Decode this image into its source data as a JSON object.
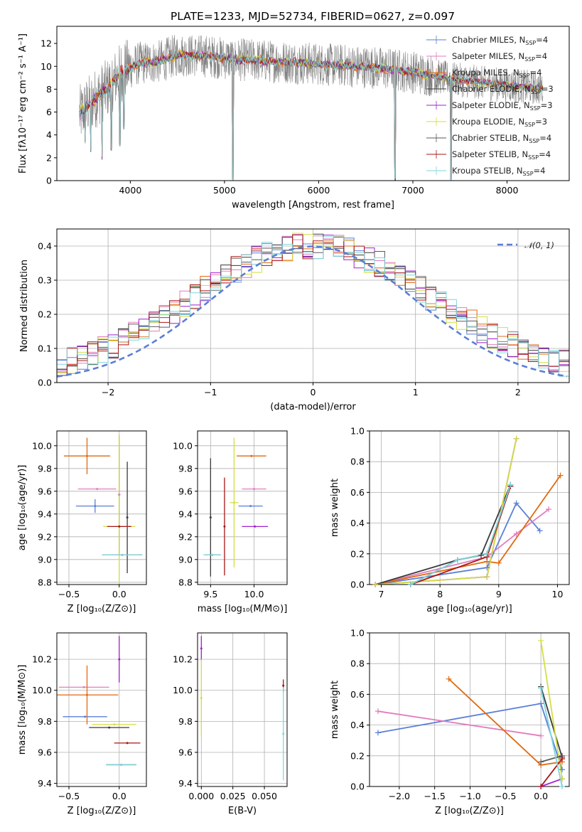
{
  "figure_title": "PLATE=1233, MJD=52734, FIBERID=0627, z=0.097",
  "models": [
    {
      "name": "Chabrier MILES",
      "nssp": "4",
      "color": "#5b7fd6"
    },
    {
      "name": "Salpeter MILES",
      "nssp": "4",
      "color": "#e27cbd"
    },
    {
      "name": "Kroupa MILES",
      "nssp": "4",
      "color": "#e06a10"
    },
    {
      "name": "Chabrier ELODIE",
      "nssp": "3",
      "color": "#3a3a3a"
    },
    {
      "name": "Salpeter ELODIE",
      "nssp": "3",
      "color": "#a21fd0"
    },
    {
      "name": "Kroupa ELODIE",
      "nssp": "3",
      "color": "#d4de42"
    },
    {
      "name": "Chabrier STELIB",
      "nssp": "4",
      "color": "#5a5a5a"
    },
    {
      "name": "Salpeter STELIB",
      "nssp": "4",
      "color": "#a81616"
    },
    {
      "name": "Kroupa STELIB",
      "nssp": "4",
      "color": "#7fd6dc"
    }
  ],
  "chart_data": [
    {
      "id": "spectrum",
      "type": "line",
      "xlabel": "wavelength [Angstrom, rest frame]",
      "ylabel": "Flux [fλ10⁻¹⁷ erg cm⁻² s⁻¹ A⁻¹]",
      "xlim": [
        3220,
        8660
      ],
      "ylim": [
        0,
        13.5
      ],
      "xticks": [
        4000,
        5000,
        6000,
        7000,
        8000
      ],
      "yticks": [
        0,
        2,
        4,
        6,
        8,
        10,
        12
      ],
      "legend_location": "top-right",
      "observed_series": {
        "color": "#808080",
        "x_range": [
          3460,
          8380
        ]
      },
      "continuum_points": [
        [
          3470,
          5.8
        ],
        [
          3600,
          7.0
        ],
        [
          3750,
          8.0
        ],
        [
          3900,
          9.5
        ],
        [
          4100,
          10.3
        ],
        [
          4300,
          10.4
        ],
        [
          4500,
          11.0
        ],
        [
          4800,
          10.9
        ],
        [
          5100,
          10.6
        ],
        [
          5400,
          10.5
        ],
        [
          5800,
          10.3
        ],
        [
          6200,
          10.1
        ],
        [
          6600,
          9.9
        ],
        [
          7000,
          9.5
        ],
        [
          7400,
          8.9
        ],
        [
          7800,
          8.5
        ],
        [
          8200,
          8.2
        ],
        [
          8380,
          8.1
        ]
      ],
      "absorption_features": [
        [
          3520,
          3.2
        ],
        [
          3580,
          2.5
        ],
        [
          3700,
          1.8
        ],
        [
          3800,
          2.6
        ],
        [
          3890,
          3.0
        ],
        [
          3933,
          4.5
        ],
        [
          5090,
          0.0
        ],
        [
          6810,
          0.0
        ],
        [
          7405,
          0.0
        ]
      ]
    },
    {
      "id": "residual-histogram",
      "type": "histogram",
      "xlabel": "(data-model)/error",
      "ylabel": "Normed distribution",
      "xlim": [
        -2.5,
        2.5
      ],
      "ylim": [
        0,
        0.45
      ],
      "xticks": [
        -2,
        -1,
        0,
        1,
        2
      ],
      "yticks": [
        0.0,
        0.1,
        0.2,
        0.3,
        0.4
      ],
      "bin_width": 0.1,
      "reference_curve": {
        "label": "𝒩(0, 1)",
        "mean": 0,
        "sigma": 1,
        "color": "#5b7fd6",
        "style": "dashed"
      },
      "legend_location": "top-right"
    },
    {
      "id": "age-vs-Z",
      "type": "errorbar",
      "xlabel": "Z [log₁₀(Z/Z⊙)]",
      "ylabel": "age  [log₁₀(age/yr)]",
      "xlim": [
        -0.62,
        0.27
      ],
      "ylim": [
        8.78,
        10.13
      ],
      "xticks": [
        -0.5,
        0.0
      ],
      "yticks": [
        8.8,
        9.0,
        9.2,
        9.4,
        9.6,
        9.8,
        10.0
      ],
      "points": [
        {
          "model": 0,
          "x": -0.24,
          "xerr": 0.19,
          "y": 9.47,
          "yerr": 0.06
        },
        {
          "model": 1,
          "x": -0.22,
          "xerr": 0.19,
          "y": 9.62,
          "yerr": 0.0
        },
        {
          "model": 2,
          "x": -0.32,
          "xerr": 0.23,
          "y": 9.91,
          "yerr": 0.16
        },
        {
          "model": 3,
          "x": 0.08,
          "xerr": 0.0,
          "y": 9.37,
          "yerr": 0.49
        },
        {
          "model": 4,
          "x": 0.0,
          "xerr": 0.0,
          "y": 9.57,
          "yerr": 0.52
        },
        {
          "model": 5,
          "x": 0.0,
          "xerr": 0.16,
          "y": 9.29,
          "yerr": 0.8
        },
        {
          "model": 6,
          "x": 0.03,
          "xerr": 0.2,
          "y": 9.04,
          "yerr": 0.0
        },
        {
          "model": 7,
          "x": 0.0,
          "xerr": 0.12,
          "y": 9.29,
          "yerr": 0.0
        },
        {
          "model": 8,
          "x": 0.03,
          "xerr": 0.2,
          "y": 9.04,
          "yerr": 0.0
        }
      ]
    },
    {
      "id": "age-vs-mass",
      "type": "errorbar",
      "xlabel": "mass [log₁₀(M/M⊙)]",
      "ylabel": "",
      "xlim": [
        9.35,
        10.38
      ],
      "ylim": [
        8.78,
        10.13
      ],
      "xticks": [
        9.5,
        10.0
      ],
      "yticks": [
        8.8,
        9.0,
        9.2,
        9.4,
        9.6,
        9.8,
        10.0
      ],
      "points": [
        {
          "model": 0,
          "x": 9.96,
          "xerr": 0.14,
          "y": 9.47,
          "yerr": 0.0
        },
        {
          "model": 1,
          "x": 10.0,
          "xerr": 0.14,
          "y": 9.62,
          "yerr": 0.0
        },
        {
          "model": 2,
          "x": 9.97,
          "xerr": 0.17,
          "y": 9.91,
          "yerr": 0.0
        },
        {
          "model": 3,
          "x": 9.5,
          "xerr": 0.0,
          "y": 9.37,
          "yerr": 0.52
        },
        {
          "model": 4,
          "x": 10.01,
          "xerr": 0.15,
          "y": 9.29,
          "yerr": 0.0
        },
        {
          "model": 5,
          "x": 9.77,
          "xerr": 0.05,
          "y": 9.5,
          "yerr": 0.57
        },
        {
          "model": 6,
          "x": 9.52,
          "xerr": 0.1,
          "y": 9.04,
          "yerr": 0.0
        },
        {
          "model": 7,
          "x": 9.66,
          "xerr": 0.0,
          "y": 9.29,
          "yerr": 0.43
        },
        {
          "model": 8,
          "x": 9.52,
          "xerr": 0.1,
          "y": 9.04,
          "yerr": 0.0
        }
      ]
    },
    {
      "id": "mass-weight-vs-age",
      "type": "line",
      "xlabel": "age  [log₁₀(age/yr)]",
      "ylabel": "mass weight",
      "xlim": [
        6.8,
        10.2
      ],
      "ylim": [
        0,
        1.0
      ],
      "xticks": [
        7,
        8,
        9,
        10
      ],
      "yticks": [
        0.0,
        0.2,
        0.4,
        0.6,
        0.8,
        1.0
      ],
      "series": [
        {
          "model": 0,
          "x": [
            6.9,
            8.8,
            9.3,
            9.7
          ],
          "y": [
            0.0,
            0.11,
            0.53,
            0.35
          ]
        },
        {
          "model": 1,
          "x": [
            6.9,
            8.8,
            9.3,
            9.85
          ],
          "y": [
            0.0,
            0.18,
            0.33,
            0.49
          ]
        },
        {
          "model": 2,
          "x": [
            6.9,
            8.8,
            9.0,
            10.05
          ],
          "y": [
            0.0,
            0.15,
            0.14,
            0.71
          ]
        },
        {
          "model": 3,
          "x": [
            6.9,
            8.3,
            8.7,
            9.2
          ],
          "y": [
            0.0,
            0.16,
            0.19,
            0.65
          ]
        },
        {
          "model": 4,
          "x": [
            6.9,
            8.8,
            9.3
          ],
          "y": [
            0.0,
            0.05,
            0.95
          ]
        },
        {
          "model": 5,
          "x": [
            6.9,
            8.8,
            9.3
          ],
          "y": [
            0.0,
            0.05,
            0.95
          ]
        },
        {
          "model": 6,
          "x": [
            7.5,
            8.3,
            8.8,
            9.2
          ],
          "y": [
            0.0,
            0.16,
            0.2,
            0.64
          ]
        },
        {
          "model": 7,
          "x": [
            7.5,
            8.8,
            9.2
          ],
          "y": [
            0.0,
            0.18,
            0.64
          ]
        },
        {
          "model": 8,
          "x": [
            7.5,
            8.3,
            8.8,
            9.2
          ],
          "y": [
            0.0,
            0.16,
            0.2,
            0.65
          ]
        }
      ]
    },
    {
      "id": "mass-vs-Z",
      "type": "errorbar",
      "xlabel": "Z [log₁₀(Z/Z⊙)]",
      "ylabel": "mass [log₁₀(M/M⊙)]",
      "xlim": [
        -0.62,
        0.27
      ],
      "ylim": [
        9.38,
        10.37
      ],
      "xticks": [
        -0.5,
        0.0
      ],
      "yticks": [
        9.4,
        9.6,
        9.8,
        10.0,
        10.2
      ],
      "points": [
        {
          "model": 0,
          "x": -0.34,
          "xerr": 0.22,
          "y": 9.83,
          "yerr": 0.0
        },
        {
          "model": 1,
          "x": -0.35,
          "xerr": 0.25,
          "y": 10.02,
          "yerr": 0.0
        },
        {
          "model": 2,
          "x": -0.32,
          "xerr": 0.31,
          "y": 9.97,
          "yerr": 0.19
        },
        {
          "model": 3,
          "x": -0.1,
          "xerr": 0.2,
          "y": 9.76,
          "yerr": 0.0
        },
        {
          "model": 4,
          "x": 0.0,
          "xerr": 0.0,
          "y": 10.2,
          "yerr": 0.15
        },
        {
          "model": 5,
          "x": -0.05,
          "xerr": 0.22,
          "y": 9.78,
          "yerr": 0.0
        },
        {
          "model": 6,
          "x": 0.02,
          "xerr": 0.15,
          "y": 9.52,
          "yerr": 0.0
        },
        {
          "model": 7,
          "x": 0.08,
          "xerr": 0.13,
          "y": 9.66,
          "yerr": 0.0
        },
        {
          "model": 8,
          "x": 0.02,
          "xerr": 0.15,
          "y": 9.52,
          "yerr": 0.0
        }
      ]
    },
    {
      "id": "mass-vs-ebv",
      "type": "errorbar",
      "xlabel": "E(B-V)",
      "ylabel": "",
      "xlim": [
        -0.003,
        0.068
      ],
      "ylim": [
        9.38,
        10.37
      ],
      "xticks": [
        0.0,
        0.025,
        0.05
      ],
      "yticks": [
        9.4,
        9.6,
        9.8,
        10.0,
        10.2
      ],
      "points": [
        {
          "model": 4,
          "x": 0.0,
          "xerr": 0.0,
          "y": 10.27,
          "yerr": 0.08
        },
        {
          "model": 5,
          "x": 0.0,
          "xerr": 0.0,
          "y": 9.95,
          "yerr": 0.25
        },
        {
          "model": 7,
          "x": 0.065,
          "xerr": 0.0,
          "y": 10.03,
          "yerr": 0.04
        },
        {
          "model": 8,
          "x": 0.065,
          "xerr": 0.0,
          "y": 9.72,
          "yerr": 0.3
        }
      ]
    },
    {
      "id": "mass-weight-vs-Z",
      "type": "line",
      "xlabel": "Z [log₁₀(Z/Z⊙)]",
      "ylabel": "mass weight",
      "xlim": [
        -2.42,
        0.4
      ],
      "ylim": [
        0,
        1.0
      ],
      "xticks": [
        -2.0,
        -1.5,
        -1.0,
        -0.5,
        0.0
      ],
      "yticks": [
        0.0,
        0.2,
        0.4,
        0.6,
        0.8,
        1.0
      ],
      "series": [
        {
          "model": 0,
          "x": [
            -2.3,
            0.0,
            0.3
          ],
          "y": [
            0.35,
            0.54,
            0.11
          ]
        },
        {
          "model": 1,
          "x": [
            -2.3,
            0.0
          ],
          "y": [
            0.49,
            0.33
          ]
        },
        {
          "model": 2,
          "x": [
            -1.3,
            0.0,
            0.3
          ],
          "y": [
            0.7,
            0.14,
            0.16
          ]
        },
        {
          "model": 3,
          "x": [
            0.0,
            0.3
          ],
          "y": [
            0.65,
            0.19
          ]
        },
        {
          "model": 4,
          "x": [
            0.0,
            0.3
          ],
          "y": [
            0.0,
            0.05
          ]
        },
        {
          "model": 5,
          "x": [
            0.0,
            0.3
          ],
          "y": [
            0.95,
            0.05
          ]
        },
        {
          "model": 6,
          "x": [
            0.0,
            0.3
          ],
          "y": [
            0.16,
            0.2
          ]
        },
        {
          "model": 7,
          "x": [
            0.0,
            0.3
          ],
          "y": [
            0.0,
            0.18
          ]
        },
        {
          "model": 8,
          "x": [
            0.0,
            0.3
          ],
          "y": [
            0.64,
            0.0
          ]
        }
      ]
    }
  ]
}
